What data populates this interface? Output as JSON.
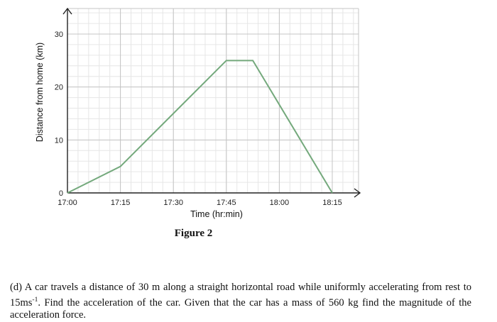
{
  "chart_data": {
    "type": "line",
    "xlabel": "Time (hr:min)",
    "ylabel": "Distance from home (km)",
    "x_ticks": [
      "17:00",
      "17:15",
      "17:30",
      "17:45",
      "18:00",
      "18:15"
    ],
    "x_minutes": [
      0,
      15,
      30,
      45,
      60,
      75
    ],
    "y_ticks": [
      0,
      10,
      20,
      30
    ],
    "xlim": [
      0,
      82
    ],
    "ylim": [
      0,
      34
    ],
    "grid": true,
    "line_color": "#74a97c",
    "series": [
      {
        "x": [
          0,
          15,
          45,
          52.5,
          75
        ],
        "y": [
          0,
          5,
          25,
          25,
          0
        ]
      }
    ]
  },
  "figure": {
    "caption": "Figure 2"
  },
  "question": {
    "text_before": "(d) A car travels a distance of 30 m along a straight horizontal road while uniformly accelerating from rest to 15ms",
    "superscript": "-1",
    "text_after": ". Find the acceleration of the car. Given that the car has a mass of 560 kg find the magnitude of the acceleration force."
  }
}
